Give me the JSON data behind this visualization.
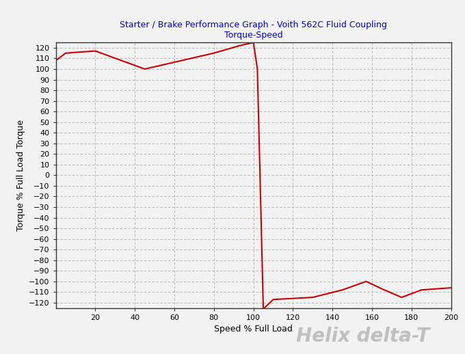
{
  "title_line1": "Starter / Brake Performance Graph - Voith 562C Fluid Coupling",
  "title_line2": "Torque-Speed",
  "xlabel": "Speed % Full Load",
  "ylabel": "Torque % Full Load Torque",
  "watermark": "Helix delta-T",
  "line_color": "#cc0000",
  "line_width": 1.5,
  "bg_color": "#f2f2f2",
  "plot_bg_color": "#f2f2f2",
  "grid_color": "#aaaaaa",
  "title_color": "#0000cc",
  "watermark_color": "#c0c0c0",
  "xlim": [
    0,
    200
  ],
  "ylim": [
    -125,
    125
  ],
  "xticks": [
    20,
    40,
    60,
    80,
    100,
    120,
    140,
    160,
    180,
    200
  ],
  "yticks": [
    -120,
    -110,
    -100,
    -90,
    -80,
    -70,
    -60,
    -50,
    -40,
    -30,
    -20,
    -10,
    0,
    10,
    20,
    30,
    40,
    50,
    60,
    70,
    80,
    90,
    100,
    110,
    120
  ],
  "x": [
    0,
    5,
    20,
    45,
    80,
    93,
    100,
    102,
    105,
    110,
    130,
    145,
    157,
    165,
    175,
    185,
    200
  ],
  "y": [
    108,
    115,
    117,
    100,
    115,
    122,
    125,
    100,
    -126,
    -117,
    -115,
    -108,
    -100,
    -107,
    -115,
    -108,
    -106
  ]
}
